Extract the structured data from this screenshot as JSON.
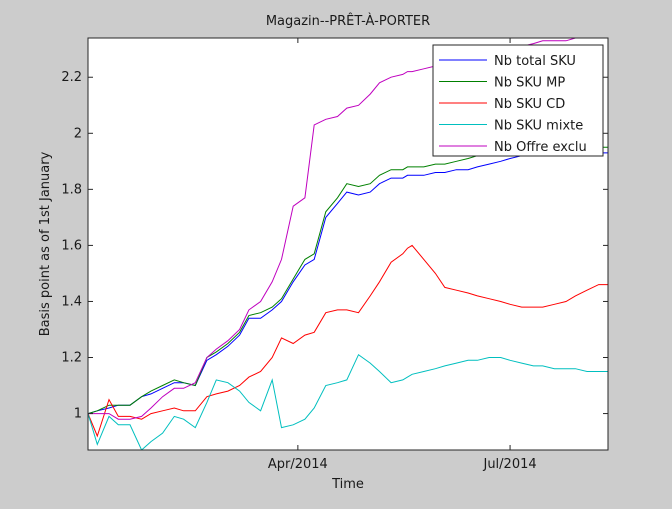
{
  "chart_data": {
    "type": "line",
    "title": "Magazin--PRÊT-À-PORTER",
    "xlabel": "Time",
    "ylabel": "Basis point as of 1st January",
    "xlim": [
      "2014-01-01",
      "2014-08-12"
    ],
    "ylim": [
      0.87,
      2.34
    ],
    "x_ticks": [
      {
        "date": "2014-04-01",
        "label": "Apr/2014"
      },
      {
        "date": "2014-07-01",
        "label": "Jul/2014"
      }
    ],
    "y_ticks": [
      1,
      1.2,
      1.4,
      1.6,
      1.8,
      2,
      2.2
    ],
    "y_tick_labels": [
      "1",
      "1.2",
      "1.4",
      "1.6",
      "1.8",
      "2",
      "2.2"
    ],
    "grid": false,
    "legend_position": "top-right",
    "x": [
      "2014-01-01",
      "2014-01-05",
      "2014-01-10",
      "2014-01-14",
      "2014-01-19",
      "2014-01-24",
      "2014-01-28",
      "2014-02-02",
      "2014-02-07",
      "2014-02-11",
      "2014-02-16",
      "2014-02-21",
      "2014-02-25",
      "2014-03-02",
      "2014-03-07",
      "2014-03-11",
      "2014-03-16",
      "2014-03-21",
      "2014-03-25",
      "2014-03-30",
      "2014-04-04",
      "2014-04-08",
      "2014-04-13",
      "2014-04-18",
      "2014-04-22",
      "2014-04-27",
      "2014-05-02",
      "2014-05-06",
      "2014-05-11",
      "2014-05-16",
      "2014-05-18",
      "2014-05-20",
      "2014-05-25",
      "2014-05-30",
      "2014-06-03",
      "2014-06-08",
      "2014-06-13",
      "2014-06-17",
      "2014-06-22",
      "2014-06-27",
      "2014-07-01",
      "2014-07-06",
      "2014-07-11",
      "2014-07-15",
      "2014-07-20",
      "2014-07-25",
      "2014-07-29",
      "2014-08-03",
      "2014-08-08",
      "2014-08-12"
    ],
    "series": [
      {
        "name": "Nb total SKU",
        "color": "#0000ff",
        "values": [
          1.0,
          1.01,
          1.02,
          1.03,
          1.03,
          1.06,
          1.07,
          1.09,
          1.11,
          1.11,
          1.1,
          1.19,
          1.21,
          1.24,
          1.28,
          1.34,
          1.34,
          1.37,
          1.4,
          1.47,
          1.53,
          1.55,
          1.7,
          1.75,
          1.79,
          1.78,
          1.79,
          1.82,
          1.84,
          1.84,
          1.85,
          1.85,
          1.85,
          1.86,
          1.86,
          1.87,
          1.87,
          1.88,
          1.89,
          1.9,
          1.91,
          1.92,
          1.93,
          1.93,
          1.94,
          1.94,
          1.93,
          1.93,
          1.93,
          1.93
        ]
      },
      {
        "name": "Nb SKU MP",
        "color": "#008000",
        "values": [
          1.0,
          1.01,
          1.03,
          1.03,
          1.03,
          1.06,
          1.08,
          1.1,
          1.12,
          1.11,
          1.1,
          1.2,
          1.22,
          1.25,
          1.29,
          1.35,
          1.36,
          1.38,
          1.41,
          1.48,
          1.55,
          1.57,
          1.72,
          1.77,
          1.82,
          1.81,
          1.82,
          1.85,
          1.87,
          1.87,
          1.88,
          1.88,
          1.88,
          1.89,
          1.89,
          1.9,
          1.91,
          1.92,
          1.93,
          1.94,
          1.95,
          1.96,
          1.97,
          1.97,
          1.97,
          1.97,
          1.96,
          1.96,
          1.95,
          1.95
        ]
      },
      {
        "name": "Nb SKU CD",
        "color": "#ff0000",
        "values": [
          1.0,
          0.92,
          1.05,
          0.99,
          0.99,
          0.98,
          1.0,
          1.01,
          1.02,
          1.01,
          1.01,
          1.06,
          1.07,
          1.08,
          1.1,
          1.13,
          1.15,
          1.2,
          1.27,
          1.25,
          1.28,
          1.29,
          1.36,
          1.37,
          1.37,
          1.36,
          1.42,
          1.47,
          1.54,
          1.57,
          1.59,
          1.6,
          1.55,
          1.5,
          1.45,
          1.44,
          1.43,
          1.42,
          1.41,
          1.4,
          1.39,
          1.38,
          1.38,
          1.38,
          1.39,
          1.4,
          1.42,
          1.44,
          1.46,
          1.46
        ]
      },
      {
        "name": "Nb SKU mixte",
        "color": "#00bfbf",
        "values": [
          1.0,
          0.89,
          0.99,
          0.96,
          0.96,
          0.87,
          0.9,
          0.93,
          0.99,
          0.98,
          0.95,
          1.04,
          1.12,
          1.11,
          1.08,
          1.04,
          1.01,
          1.12,
          0.95,
          0.96,
          0.98,
          1.02,
          1.1,
          1.11,
          1.12,
          1.21,
          1.18,
          1.15,
          1.11,
          1.12,
          1.13,
          1.14,
          1.15,
          1.16,
          1.17,
          1.18,
          1.19,
          1.19,
          1.2,
          1.2,
          1.19,
          1.18,
          1.17,
          1.17,
          1.16,
          1.16,
          1.16,
          1.15,
          1.15,
          1.15
        ]
      },
      {
        "name": "Nb Offre exclu",
        "color": "#bf00bf",
        "values": [
          1.0,
          1.0,
          1.0,
          0.98,
          0.98,
          0.99,
          1.02,
          1.06,
          1.09,
          1.09,
          1.11,
          1.2,
          1.23,
          1.26,
          1.3,
          1.37,
          1.4,
          1.47,
          1.55,
          1.74,
          1.77,
          2.03,
          2.05,
          2.06,
          2.09,
          2.1,
          2.14,
          2.18,
          2.2,
          2.21,
          2.22,
          2.22,
          2.23,
          2.24,
          2.25,
          2.25,
          2.26,
          2.27,
          2.28,
          2.29,
          2.3,
          2.31,
          2.32,
          2.33,
          2.33,
          2.33,
          2.34,
          2.34,
          2.34,
          2.34
        ]
      }
    ]
  }
}
